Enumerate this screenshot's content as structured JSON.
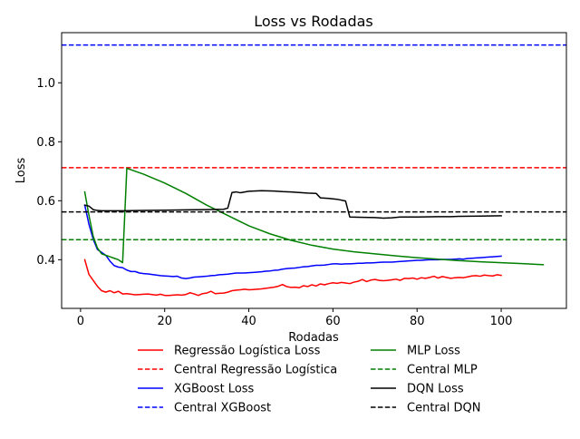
{
  "chart_data": {
    "type": "line",
    "title": "Loss vs Rodadas",
    "xlabel": "Rodadas",
    "ylabel": "Loss",
    "xlim": [
      -4.5,
      115.5
    ],
    "ylim": [
      0.235,
      1.17
    ],
    "xticks": [
      0,
      20,
      40,
      60,
      80,
      100
    ],
    "yticks": [
      0.4,
      0.6,
      0.8,
      1.0
    ],
    "ytick_labels": [
      "0.4",
      "0.6",
      "0.8",
      "1.0"
    ],
    "grid": false,
    "legend_position": "bottom-center, 2 columns",
    "series": [
      {
        "name": "Regressão Logística Loss",
        "color": "#ff0000",
        "style": "solid",
        "points": [
          [
            1,
            0.4
          ],
          [
            2,
            0.35
          ],
          [
            3,
            0.33
          ],
          [
            4,
            0.31
          ],
          [
            5,
            0.295
          ],
          [
            6,
            0.29
          ],
          [
            7,
            0.295
          ],
          [
            8,
            0.288
          ],
          [
            9,
            0.293
          ],
          [
            10,
            0.284
          ],
          [
            11,
            0.285
          ],
          [
            12,
            0.283
          ],
          [
            13,
            0.281
          ],
          [
            14,
            0.282
          ],
          [
            15,
            0.283
          ],
          [
            16,
            0.284
          ],
          [
            17,
            0.282
          ],
          [
            18,
            0.28
          ],
          [
            19,
            0.283
          ],
          [
            20,
            0.279
          ],
          [
            21,
            0.279
          ],
          [
            22,
            0.28
          ],
          [
            23,
            0.281
          ],
          [
            24,
            0.28
          ],
          [
            25,
            0.282
          ],
          [
            26,
            0.288
          ],
          [
            27,
            0.284
          ],
          [
            28,
            0.279
          ],
          [
            29,
            0.285
          ],
          [
            30,
            0.287
          ],
          [
            31,
            0.293
          ],
          [
            32,
            0.285
          ],
          [
            33,
            0.286
          ],
          [
            34,
            0.287
          ],
          [
            35,
            0.29
          ],
          [
            36,
            0.295
          ],
          [
            37,
            0.297
          ],
          [
            38,
            0.298
          ],
          [
            39,
            0.3
          ],
          [
            40,
            0.298
          ],
          [
            41,
            0.299
          ],
          [
            42,
            0.3
          ],
          [
            43,
            0.301
          ],
          [
            44,
            0.303
          ],
          [
            45,
            0.305
          ],
          [
            46,
            0.307
          ],
          [
            47,
            0.31
          ],
          [
            48,
            0.316
          ],
          [
            49,
            0.309
          ],
          [
            50,
            0.306
          ],
          [
            51,
            0.307
          ],
          [
            52,
            0.305
          ],
          [
            53,
            0.312
          ],
          [
            54,
            0.309
          ],
          [
            55,
            0.315
          ],
          [
            56,
            0.311
          ],
          [
            57,
            0.318
          ],
          [
            58,
            0.315
          ],
          [
            59,
            0.319
          ],
          [
            60,
            0.322
          ],
          [
            61,
            0.32
          ],
          [
            62,
            0.323
          ],
          [
            63,
            0.321
          ],
          [
            64,
            0.319
          ],
          [
            65,
            0.324
          ],
          [
            66,
            0.327
          ],
          [
            67,
            0.333
          ],
          [
            68,
            0.326
          ],
          [
            69,
            0.331
          ],
          [
            70,
            0.333
          ],
          [
            71,
            0.33
          ],
          [
            72,
            0.329
          ],
          [
            73,
            0.33
          ],
          [
            74,
            0.332
          ],
          [
            75,
            0.334
          ],
          [
            76,
            0.33
          ],
          [
            77,
            0.337
          ],
          [
            78,
            0.336
          ],
          [
            79,
            0.338
          ],
          [
            80,
            0.334
          ],
          [
            81,
            0.339
          ],
          [
            82,
            0.337
          ],
          [
            83,
            0.34
          ],
          [
            84,
            0.344
          ],
          [
            85,
            0.338
          ],
          [
            86,
            0.343
          ],
          [
            87,
            0.34
          ],
          [
            88,
            0.337
          ],
          [
            89,
            0.339
          ],
          [
            90,
            0.34
          ],
          [
            91,
            0.339
          ],
          [
            92,
            0.342
          ],
          [
            93,
            0.345
          ],
          [
            94,
            0.346
          ],
          [
            95,
            0.344
          ],
          [
            96,
            0.348
          ],
          [
            97,
            0.346
          ],
          [
            98,
            0.345
          ],
          [
            99,
            0.349
          ],
          [
            100,
            0.347
          ]
        ]
      },
      {
        "name": "Central Regressão Logística",
        "color": "#ff0000",
        "style": "dashed",
        "hline": 0.712
      },
      {
        "name": "XGBoost Loss",
        "color": "#0000ff",
        "style": "solid",
        "points": [
          [
            1,
            0.585
          ],
          [
            2,
            0.52
          ],
          [
            3,
            0.47
          ],
          [
            4,
            0.435
          ],
          [
            5,
            0.425
          ],
          [
            6,
            0.415
          ],
          [
            7,
            0.395
          ],
          [
            8,
            0.38
          ],
          [
            9,
            0.375
          ],
          [
            10,
            0.373
          ],
          [
            11,
            0.365
          ],
          [
            12,
            0.36
          ],
          [
            13,
            0.36
          ],
          [
            14,
            0.355
          ],
          [
            15,
            0.353
          ],
          [
            16,
            0.352
          ],
          [
            17,
            0.35
          ],
          [
            18,
            0.348
          ],
          [
            19,
            0.346
          ],
          [
            20,
            0.345
          ],
          [
            21,
            0.344
          ],
          [
            22,
            0.343
          ],
          [
            23,
            0.344
          ],
          [
            24,
            0.338
          ],
          [
            25,
            0.336
          ],
          [
            26,
            0.338
          ],
          [
            27,
            0.341
          ],
          [
            28,
            0.342
          ],
          [
            29,
            0.343
          ],
          [
            30,
            0.344
          ],
          [
            31,
            0.346
          ],
          [
            32,
            0.347
          ],
          [
            33,
            0.349
          ],
          [
            34,
            0.35
          ],
          [
            35,
            0.351
          ],
          [
            36,
            0.353
          ],
          [
            37,
            0.355
          ],
          [
            38,
            0.355
          ],
          [
            39,
            0.355
          ],
          [
            40,
            0.356
          ],
          [
            41,
            0.357
          ],
          [
            42,
            0.358
          ],
          [
            43,
            0.359
          ],
          [
            44,
            0.361
          ],
          [
            45,
            0.362
          ],
          [
            46,
            0.364
          ],
          [
            47,
            0.365
          ],
          [
            48,
            0.368
          ],
          [
            49,
            0.37
          ],
          [
            50,
            0.371
          ],
          [
            51,
            0.372
          ],
          [
            52,
            0.374
          ],
          [
            53,
            0.376
          ],
          [
            54,
            0.377
          ],
          [
            55,
            0.379
          ],
          [
            56,
            0.381
          ],
          [
            57,
            0.381
          ],
          [
            58,
            0.382
          ],
          [
            59,
            0.384
          ],
          [
            60,
            0.386
          ],
          [
            61,
            0.386
          ],
          [
            62,
            0.385
          ],
          [
            63,
            0.386
          ],
          [
            64,
            0.386
          ],
          [
            65,
            0.387
          ],
          [
            66,
            0.388
          ],
          [
            67,
            0.388
          ],
          [
            68,
            0.389
          ],
          [
            69,
            0.389
          ],
          [
            70,
            0.39
          ],
          [
            71,
            0.391
          ],
          [
            72,
            0.392
          ],
          [
            73,
            0.392
          ],
          [
            74,
            0.392
          ],
          [
            75,
            0.393
          ],
          [
            76,
            0.394
          ],
          [
            77,
            0.395
          ],
          [
            78,
            0.396
          ],
          [
            79,
            0.397
          ],
          [
            80,
            0.398
          ],
          [
            81,
            0.398
          ],
          [
            82,
            0.399
          ],
          [
            83,
            0.4
          ],
          [
            84,
            0.4
          ],
          [
            85,
            0.4
          ],
          [
            86,
            0.401
          ],
          [
            87,
            0.401
          ],
          [
            88,
            0.401
          ],
          [
            89,
            0.402
          ],
          [
            90,
            0.403
          ],
          [
            91,
            0.402
          ],
          [
            92,
            0.404
          ],
          [
            93,
            0.405
          ],
          [
            94,
            0.406
          ],
          [
            95,
            0.407
          ],
          [
            96,
            0.408
          ],
          [
            97,
            0.409
          ],
          [
            98,
            0.41
          ],
          [
            99,
            0.411
          ],
          [
            100,
            0.412
          ]
        ]
      },
      {
        "name": "Central XGBoost",
        "color": "#0000ff",
        "style": "dashed",
        "hline": 1.128
      },
      {
        "name": "MLP Loss",
        "color": "#008000",
        "style": "solid",
        "points": [
          [
            1,
            0.63
          ],
          [
            2,
            0.55
          ],
          [
            3,
            0.48
          ],
          [
            4,
            0.44
          ],
          [
            5,
            0.42
          ],
          [
            6,
            0.415
          ],
          [
            7,
            0.41
          ],
          [
            8,
            0.405
          ],
          [
            9,
            0.4
          ],
          [
            10,
            0.39
          ],
          [
            11,
            0.71
          ],
          [
            15,
            0.69
          ],
          [
            20,
            0.66
          ],
          [
            25,
            0.625
          ],
          [
            30,
            0.585
          ],
          [
            35,
            0.55
          ],
          [
            40,
            0.515
          ],
          [
            45,
            0.488
          ],
          [
            50,
            0.466
          ],
          [
            55,
            0.449
          ],
          [
            60,
            0.436
          ],
          [
            65,
            0.427
          ],
          [
            70,
            0.42
          ],
          [
            75,
            0.413
          ],
          [
            80,
            0.407
          ],
          [
            85,
            0.402
          ],
          [
            90,
            0.397
          ],
          [
            95,
            0.393
          ],
          [
            100,
            0.39
          ],
          [
            105,
            0.387
          ],
          [
            110,
            0.383
          ]
        ]
      },
      {
        "name": "Central MLP",
        "color": "#008000",
        "style": "dashed",
        "hline": 0.468
      },
      {
        "name": "DQN Loss",
        "color": "#000000",
        "style": "solid",
        "points": [
          [
            1,
            0.585
          ],
          [
            2,
            0.582
          ],
          [
            3,
            0.57
          ],
          [
            4,
            0.567
          ],
          [
            5,
            0.566
          ],
          [
            10,
            0.566
          ],
          [
            15,
            0.567
          ],
          [
            20,
            0.568
          ],
          [
            25,
            0.569
          ],
          [
            30,
            0.57
          ],
          [
            34,
            0.571
          ],
          [
            35,
            0.575
          ],
          [
            36,
            0.628
          ],
          [
            37,
            0.63
          ],
          [
            38,
            0.627
          ],
          [
            40,
            0.632
          ],
          [
            43,
            0.634
          ],
          [
            46,
            0.633
          ],
          [
            48,
            0.631
          ],
          [
            50,
            0.63
          ],
          [
            52,
            0.628
          ],
          [
            54,
            0.626
          ],
          [
            56,
            0.625
          ],
          [
            57,
            0.61
          ],
          [
            59,
            0.608
          ],
          [
            61,
            0.605
          ],
          [
            63,
            0.599
          ],
          [
            64,
            0.545
          ],
          [
            66,
            0.544
          ],
          [
            70,
            0.543
          ],
          [
            72,
            0.541
          ],
          [
            74,
            0.542
          ],
          [
            76,
            0.545
          ],
          [
            80,
            0.545
          ],
          [
            85,
            0.546
          ],
          [
            88,
            0.546
          ],
          [
            90,
            0.547
          ],
          [
            95,
            0.548
          ],
          [
            100,
            0.549
          ]
        ]
      },
      {
        "name": "Central DQN",
        "color": "#000000",
        "style": "dashed",
        "hline": 0.562
      }
    ]
  }
}
